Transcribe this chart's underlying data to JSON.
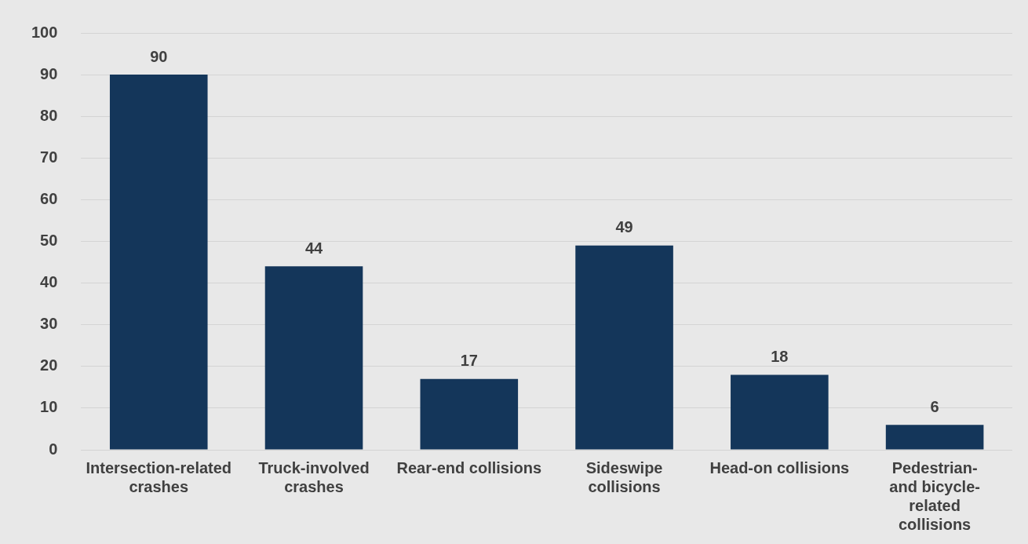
{
  "chart_data": {
    "type": "bar",
    "categories": [
      "Intersection-related crashes",
      "Truck-involved crashes",
      "Rear-end collisions",
      "Sideswipe collisions",
      "Head-on collisions",
      "Pedestrian-and bicycle-related collisions"
    ],
    "values": [
      90,
      44,
      17,
      49,
      18,
      6
    ],
    "color": "#14365a",
    "ylim": [
      0,
      100
    ],
    "yticks": [
      0,
      10,
      20,
      30,
      40,
      50,
      60,
      70,
      80,
      90,
      100
    ],
    "grid": "y",
    "data_labels": true
  }
}
